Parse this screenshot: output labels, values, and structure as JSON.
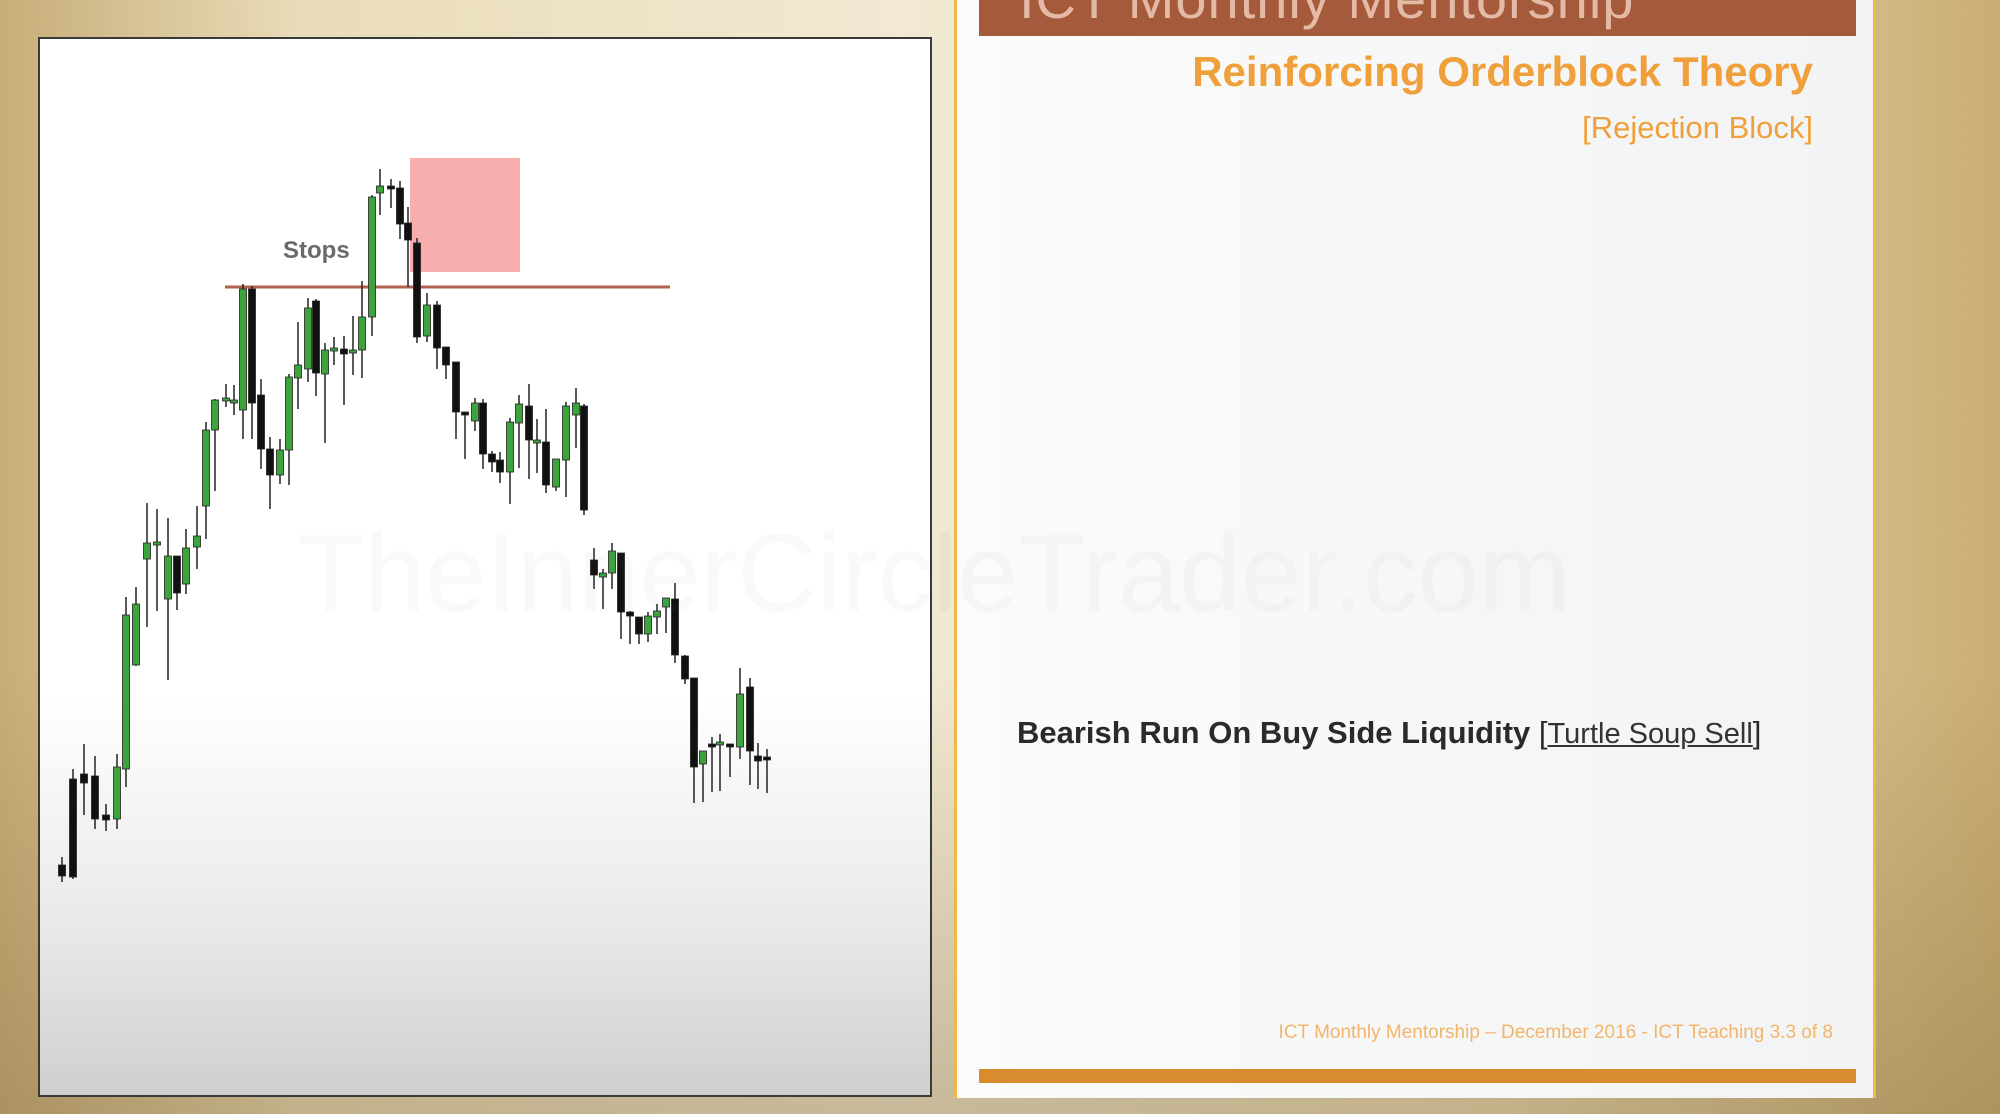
{
  "chart": {
    "annotation_label": "Stops",
    "colors": {
      "bull_body": "#3da33d",
      "bear_body": "#111111",
      "stops_line": "#b3624f",
      "rejection_box": "#f6a5a5"
    },
    "watermark": "TheInnerCircleTrader.com"
  },
  "slide": {
    "header_text": "ICT Monthly Mentorship",
    "title": "Reinforcing Orderblock Theory",
    "subtitle": "[Rejection Block]",
    "caption_main": "Bearish Run On Buy Side Liquidity",
    "caption_bracket_open": "[",
    "caption_link": "Turtle Soup Sell",
    "caption_bracket_close": "]",
    "footer": "ICT Monthly Mentorship – December 2016 - ICT Teaching 3.3 of 8",
    "colors": {
      "header_bar": "#a65a3c",
      "title": "#f0a03a",
      "bottom_bar": "#d98c2d",
      "border": "#f0b84a"
    }
  }
}
